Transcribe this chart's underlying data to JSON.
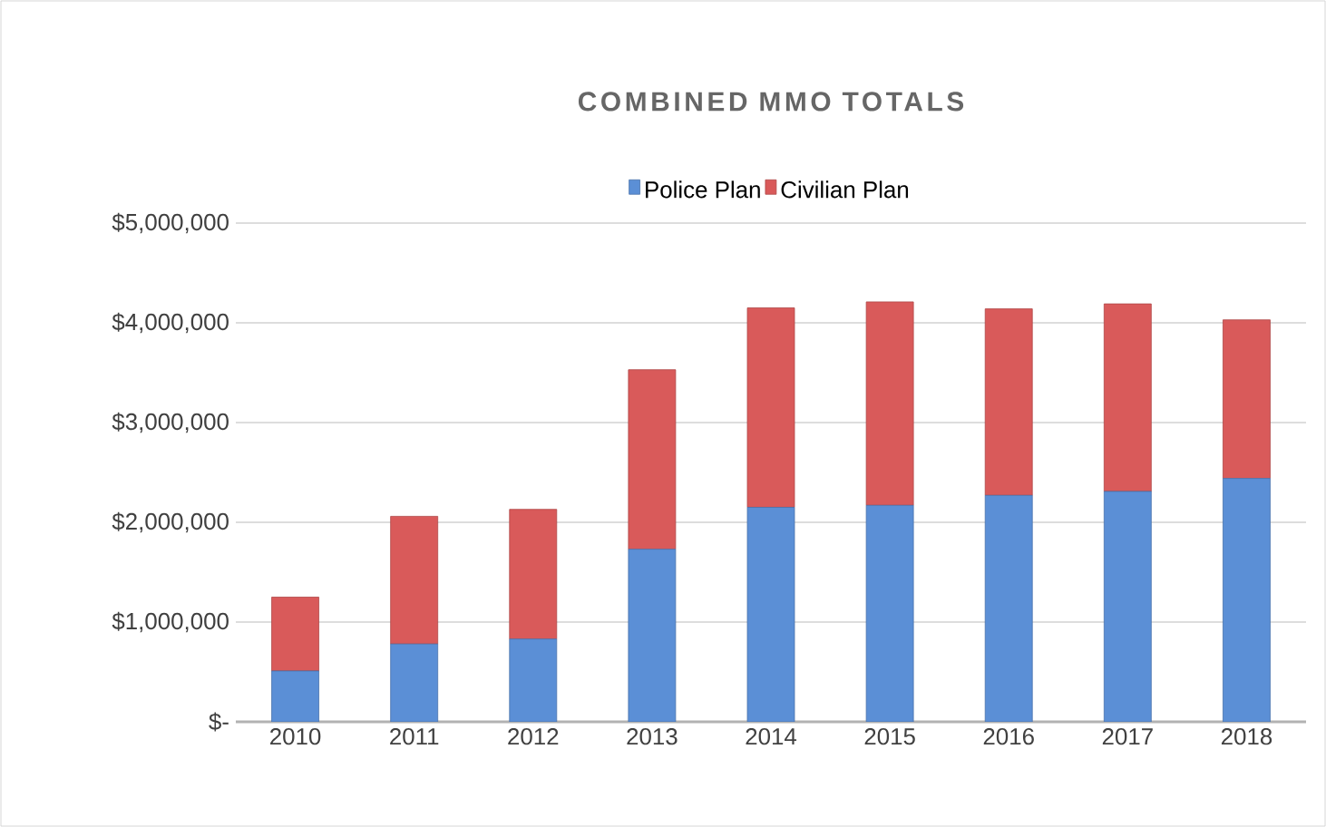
{
  "chart_data": {
    "type": "bar",
    "title": "COMBINED MMO TOTALS",
    "stacked": true,
    "grid": "y",
    "legend": "top",
    "categories": [
      "2010",
      "2011",
      "2012",
      "2013",
      "2014",
      "2015",
      "2016",
      "2017",
      "2018"
    ],
    "series": [
      {
        "name": "Police Plan",
        "color": "#5b8fd6",
        "values": [
          510000,
          780000,
          830000,
          1730000,
          2150000,
          2170000,
          2270000,
          2310000,
          2440000
        ]
      },
      {
        "name": "Civilian Plan",
        "color": "#d95a5a",
        "values": [
          740000,
          1280000,
          1300000,
          1800000,
          2000000,
          2040000,
          1870000,
          1880000,
          1590000
        ]
      }
    ],
    "ylim": [
      0,
      5000000
    ],
    "yticks": [
      {
        "value": 0,
        "label": "$-"
      },
      {
        "value": 1000000,
        "label": "$1,000,000"
      },
      {
        "value": 2000000,
        "label": "$2,000,000"
      },
      {
        "value": 3000000,
        "label": "$3,000,000"
      },
      {
        "value": 4000000,
        "label": "$4,000,000"
      },
      {
        "value": 5000000,
        "label": "$5,000,000"
      }
    ]
  }
}
